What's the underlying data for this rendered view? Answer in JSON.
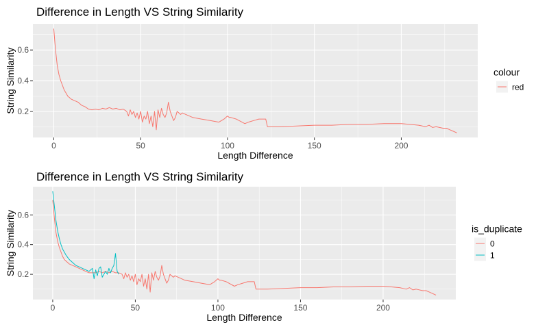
{
  "chart_data": [
    {
      "type": "line",
      "title": "Difference in Length VS String Similarity",
      "xlabel": "Length Difference",
      "ylabel": "String Similarity",
      "xlim": [
        -12,
        244
      ],
      "ylim": [
        0.03,
        0.77
      ],
      "xticks": [
        0,
        50,
        100,
        150,
        200
      ],
      "yticks": [
        0.2,
        0.4,
        0.6
      ],
      "grid": true,
      "legend_position": "right",
      "legend_title": "colour",
      "series": [
        {
          "name": "red",
          "color": "#F8766D",
          "x": [
            0,
            1,
            2,
            3,
            4,
            5,
            6,
            7,
            8,
            10,
            12,
            14,
            16,
            18,
            20,
            22,
            24,
            26,
            28,
            30,
            32,
            34,
            36,
            38,
            40,
            42,
            43,
            44,
            45,
            46,
            47,
            48,
            49,
            50,
            51,
            52,
            53,
            54,
            55,
            56,
            57,
            58,
            59,
            60,
            61,
            62,
            63,
            64,
            65,
            66,
            67,
            68,
            69,
            70,
            71,
            72,
            73,
            74,
            76,
            78,
            80,
            85,
            90,
            95,
            98,
            100,
            101,
            102,
            105,
            110,
            112,
            115,
            118,
            122,
            123,
            125,
            130,
            140,
            150,
            160,
            170,
            180,
            190,
            200,
            205,
            210,
            214,
            216,
            218,
            220,
            224,
            226,
            228,
            230,
            232
          ],
          "y": [
            0.74,
            0.6,
            0.5,
            0.44,
            0.4,
            0.37,
            0.34,
            0.32,
            0.3,
            0.28,
            0.27,
            0.26,
            0.24,
            0.23,
            0.215,
            0.21,
            0.215,
            0.21,
            0.22,
            0.215,
            0.225,
            0.215,
            0.22,
            0.21,
            0.215,
            0.2,
            0.17,
            0.21,
            0.18,
            0.2,
            0.16,
            0.19,
            0.15,
            0.2,
            0.13,
            0.17,
            0.15,
            0.2,
            0.12,
            0.17,
            0.1,
            0.2,
            0.08,
            0.21,
            0.16,
            0.22,
            0.18,
            0.16,
            0.19,
            0.26,
            0.2,
            0.17,
            0.14,
            0.16,
            0.2,
            0.19,
            0.18,
            0.19,
            0.18,
            0.17,
            0.16,
            0.15,
            0.14,
            0.13,
            0.15,
            0.17,
            0.16,
            0.16,
            0.15,
            0.12,
            0.13,
            0.14,
            0.15,
            0.15,
            0.1,
            0.1,
            0.1,
            0.105,
            0.11,
            0.11,
            0.115,
            0.115,
            0.12,
            0.12,
            0.115,
            0.11,
            0.1,
            0.11,
            0.095,
            0.1,
            0.09,
            0.09,
            0.08,
            0.07,
            0.06
          ]
        }
      ]
    },
    {
      "type": "line",
      "title": "Difference in Length VS String Similarity",
      "xlabel": "Length Difference",
      "ylabel": "String Similarity",
      "xlim": [
        -12,
        244
      ],
      "ylim": [
        0.03,
        0.79
      ],
      "xticks": [
        0,
        50,
        100,
        150,
        200
      ],
      "yticks": [
        0.2,
        0.4,
        0.6
      ],
      "grid": true,
      "legend_position": "right",
      "legend_title": "is_duplicate",
      "series": [
        {
          "name": "0",
          "color": "#F8766D",
          "x": [
            0,
            1,
            2,
            3,
            4,
            5,
            6,
            7,
            8,
            10,
            12,
            14,
            16,
            18,
            20,
            22,
            24,
            26,
            28,
            30,
            32,
            34,
            36,
            38,
            40,
            42,
            43,
            44,
            45,
            46,
            47,
            48,
            49,
            50,
            51,
            52,
            53,
            54,
            55,
            56,
            57,
            58,
            59,
            60,
            61,
            62,
            63,
            64,
            65,
            66,
            67,
            68,
            69,
            70,
            71,
            72,
            73,
            74,
            76,
            78,
            80,
            85,
            90,
            95,
            98,
            100,
            101,
            102,
            105,
            110,
            112,
            115,
            118,
            122,
            123,
            125,
            130,
            140,
            150,
            160,
            170,
            180,
            190,
            200,
            205,
            210,
            214,
            216,
            218,
            220,
            224,
            226,
            228,
            230,
            232
          ],
          "y": [
            0.7,
            0.58,
            0.48,
            0.42,
            0.38,
            0.35,
            0.32,
            0.3,
            0.29,
            0.27,
            0.26,
            0.25,
            0.24,
            0.23,
            0.22,
            0.21,
            0.21,
            0.21,
            0.22,
            0.21,
            0.22,
            0.21,
            0.22,
            0.21,
            0.21,
            0.2,
            0.17,
            0.21,
            0.18,
            0.2,
            0.16,
            0.19,
            0.15,
            0.2,
            0.13,
            0.17,
            0.15,
            0.2,
            0.12,
            0.17,
            0.1,
            0.2,
            0.08,
            0.21,
            0.16,
            0.22,
            0.18,
            0.16,
            0.19,
            0.26,
            0.2,
            0.17,
            0.14,
            0.16,
            0.2,
            0.19,
            0.18,
            0.19,
            0.18,
            0.17,
            0.16,
            0.15,
            0.14,
            0.13,
            0.15,
            0.17,
            0.16,
            0.16,
            0.15,
            0.12,
            0.13,
            0.14,
            0.15,
            0.15,
            0.1,
            0.1,
            0.1,
            0.105,
            0.11,
            0.11,
            0.115,
            0.115,
            0.12,
            0.12,
            0.115,
            0.11,
            0.1,
            0.11,
            0.095,
            0.1,
            0.09,
            0.09,
            0.08,
            0.07,
            0.06
          ]
        },
        {
          "name": "1",
          "color": "#00BFC4",
          "x": [
            0,
            1,
            2,
            3,
            4,
            5,
            6,
            7,
            8,
            10,
            12,
            14,
            16,
            18,
            20,
            22,
            24,
            25,
            26,
            27,
            28,
            29,
            30,
            31,
            32,
            33,
            34,
            35,
            36,
            37,
            38,
            39,
            40
          ],
          "y": [
            0.76,
            0.66,
            0.56,
            0.49,
            0.44,
            0.4,
            0.37,
            0.35,
            0.33,
            0.3,
            0.28,
            0.26,
            0.25,
            0.24,
            0.23,
            0.22,
            0.24,
            0.17,
            0.23,
            0.19,
            0.24,
            0.25,
            0.18,
            0.2,
            0.22,
            0.2,
            0.24,
            0.21,
            0.24,
            0.26,
            0.34,
            0.22,
            0.2
          ]
        }
      ]
    }
  ]
}
